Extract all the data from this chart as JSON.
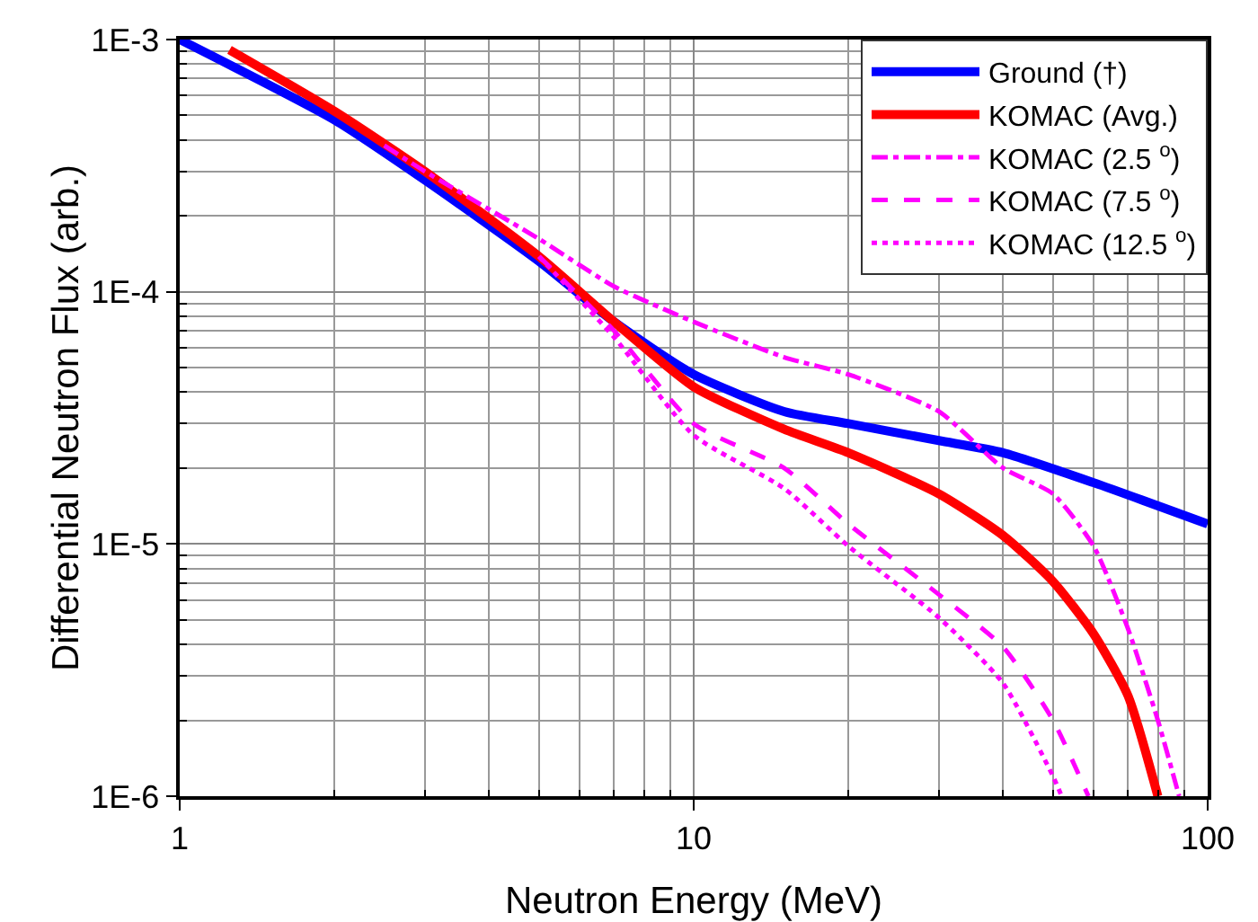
{
  "chart_data": {
    "type": "line",
    "xlabel": "Neutron Energy (MeV)",
    "ylabel": "Differential Neutron Flux (arb.)",
    "log": "xy",
    "xlim": [
      1,
      100
    ],
    "ylim": [
      1e-06,
      0.001
    ],
    "xticks": [
      1,
      10,
      100
    ],
    "yticks": [
      {
        "value": 0.001,
        "label": "1E-3"
      },
      {
        "value": 0.0001,
        "label": "1E-4"
      },
      {
        "value": 1e-05,
        "label": "1E-5"
      },
      {
        "value": 1e-06,
        "label": "1E-6"
      }
    ],
    "grid": true,
    "legend": "top right",
    "marker": "none",
    "series": [
      {
        "name": "Ground (†)",
        "color": "#0000ff",
        "line_style": "solid",
        "x": [
          1,
          2,
          3,
          5,
          7,
          10,
          15,
          20,
          30,
          40,
          60,
          100
        ],
        "values": [
          0.001,
          0.00048,
          0.000277,
          0.000132,
          7.6e-05,
          4.7e-05,
          3.35e-05,
          3e-05,
          2.57e-05,
          2.3e-05,
          1.75e-05,
          1.2e-05
        ]
      },
      {
        "name": "KOMAC (Avg.)",
        "color": "#ff0000",
        "line_style": "solid",
        "x": [
          1.25,
          2,
          3,
          5,
          7,
          10,
          15,
          20,
          30,
          40,
          50,
          60,
          70,
          80
        ],
        "values": [
          0.00091,
          0.00052,
          0.0003,
          0.000138,
          7.6e-05,
          4.2e-05,
          2.85e-05,
          2.3e-05,
          1.58e-05,
          1.08e-05,
          7.1e-06,
          4.4e-06,
          2.5e-06,
          1e-06
        ]
      },
      {
        "name": "KOMAC (2.5 $^{o}$)",
        "color": "#ff00ff",
        "line_style": "dashdot",
        "x": [
          2.5,
          3,
          5,
          7,
          10,
          15,
          20,
          30,
          40,
          50,
          60,
          70,
          80,
          88
        ],
        "values": [
          0.00038,
          0.0003,
          0.000162,
          0.000105,
          7.6e-05,
          5.5e-05,
          4.7e-05,
          3.35e-05,
          2e-05,
          1.58e-05,
          9.8e-06,
          4.6e-06,
          2e-06,
          1e-06
        ]
      },
      {
        "name": "KOMAC (7.5 $^{o}$)",
        "color": "#ff00ff",
        "line_style": "dashed",
        "x": [
          5,
          7,
          10,
          15,
          20,
          30,
          40,
          50,
          58.6
        ],
        "values": [
          0.000138,
          7e-05,
          3e-05,
          2e-05,
          1.2e-05,
          6.3e-06,
          3.9e-06,
          2e-06,
          1e-06
        ]
      },
      {
        "name": "KOMAC (12.5 $^{o}$)",
        "color": "#ff00ff",
        "line_style": "dotted",
        "x": [
          5,
          7,
          10,
          15,
          20,
          30,
          40,
          50,
          52
        ],
        "values": [
          0.000138,
          6.6e-05,
          2.7e-05,
          1.66e-05,
          9.8e-06,
          5.1e-06,
          2.8e-06,
          1.2e-06,
          1e-06
        ]
      }
    ]
  }
}
